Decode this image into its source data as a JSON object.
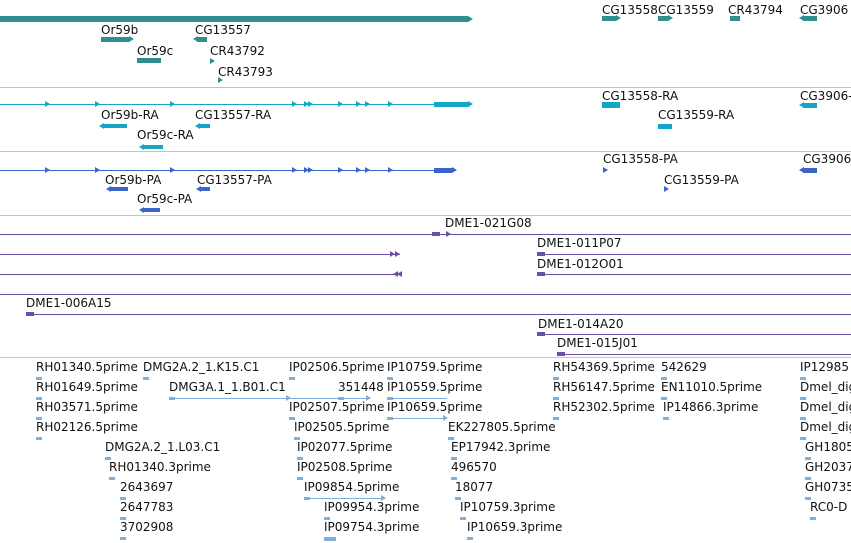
{
  "colors": {
    "gene": "#2f8f8f",
    "mrna": "#13a7c5",
    "cds": "#3a66c8",
    "clone": "#6b4fa6",
    "est": "#7fb0dd",
    "separator": "#c4c4c4",
    "label": "#111111"
  },
  "tracks": {
    "genes": {
      "labels": [
        "Or59b",
        "Or59c",
        "CG13557",
        "CR43792",
        "CR43793",
        "CG13558",
        "CG13559",
        "CR43794",
        "CG3906"
      ]
    },
    "mrna": {
      "labels": [
        "Or59b-RA",
        "Or59c-RA",
        "CG13557-RA",
        "CG13558-RA",
        "CG13559-RA",
        "CG3906-"
      ]
    },
    "cds": {
      "labels": [
        "Or59b-PA",
        "Or59c-PA",
        "CG13557-PA",
        "CG13558-PA",
        "CG13559-PA",
        "CG3906"
      ]
    },
    "clones": {
      "labels": [
        "DME1-021G08",
        "DME1-011P07",
        "DME1-012O01",
        "DME1-006A15",
        "DME1-014A20",
        "DME1-015J01"
      ]
    },
    "ests": {
      "labels": [
        "RH01340.5prime",
        "DMG2A.2_1.K15.C1",
        "IP02506.5prime",
        "IP10759.5prime",
        "RH54369.5prime",
        "542629",
        "IP12985",
        "RH01649.5prime",
        "DMG3A.1_1.B01.C1",
        "351448",
        "IP10559.5prime",
        "RH56147.5prime",
        "EN11010.5prime",
        "Dmel_dig",
        "RH03571.5prime",
        "IP02507.5prime",
        "IP10659.5prime",
        "RH52302.5prime",
        "IP14866.3prime",
        "Dmel_dig",
        "RH02126.5prime",
        "IP02505.5prime",
        "EK227805.5prime",
        "Dmel_dig",
        "DMG2A.2_1.L03.C1",
        "IP02077.5prime",
        "EP17942.3prime",
        "GH1805",
        "RH01340.3prime",
        "IP02508.5prime",
        "496570",
        "GH2037",
        "2643697",
        "IP09854.5prime",
        "18077",
        "GH0735",
        "2647783",
        "IP09954.3prime",
        "IP10759.3prime",
        "RC0-D",
        "3702908",
        "IP09754.3prime",
        "IP10659.3prime"
      ]
    }
  }
}
